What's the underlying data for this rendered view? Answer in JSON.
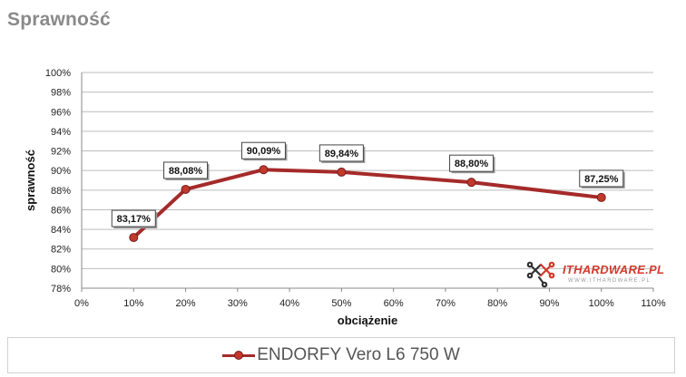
{
  "page": {
    "title": "Sprawność"
  },
  "chart_data": {
    "type": "line",
    "title": "",
    "xlabel": "obciążenie",
    "ylabel": "sprawność",
    "xlim": [
      0,
      110
    ],
    "ylim": [
      78,
      100
    ],
    "xticks": [
      "0%",
      "10%",
      "20%",
      "30%",
      "40%",
      "50%",
      "60%",
      "70%",
      "80%",
      "90%",
      "100%",
      "110%"
    ],
    "yticks": [
      "78%",
      "80%",
      "82%",
      "84%",
      "86%",
      "88%",
      "90%",
      "92%",
      "94%",
      "96%",
      "98%",
      "100%"
    ],
    "grid": true,
    "legend_position": "bottom",
    "series": [
      {
        "name": "ENDORFY Vero L6 750 W",
        "color": "#a52a2a",
        "points": [
          {
            "x": 10,
            "y": 83.17,
            "label": "83,17%"
          },
          {
            "x": 20,
            "y": 88.08,
            "label": "88,08%"
          },
          {
            "x": 35,
            "y": 90.09,
            "label": "90,09%"
          },
          {
            "x": 50,
            "y": 89.84,
            "label": "89,84%"
          },
          {
            "x": 75,
            "y": 88.8,
            "label": "88,80%"
          },
          {
            "x": 100,
            "y": 87.25,
            "label": "87,25%"
          }
        ]
      }
    ]
  },
  "logo": {
    "name": "ITHARDWARE.PL",
    "sub": "WWW.ITHARDWARE.PL",
    "icon": "ithardware-logo-icon"
  }
}
